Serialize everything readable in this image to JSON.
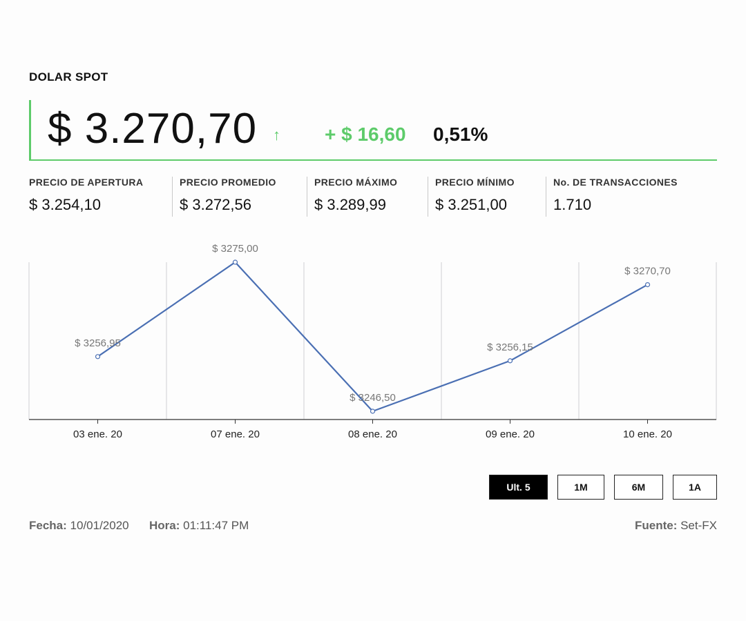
{
  "header": {
    "title": "DOLAR SPOT",
    "price": "$ 3.270,70",
    "arrow": "↑",
    "change_abs": "+ $ 16,60",
    "change_pct": "0,51%"
  },
  "stats": [
    {
      "label": "PRECIO DE APERTURA",
      "value": "$ 3.254,10"
    },
    {
      "label": "PRECIO PROMEDIO",
      "value": "$ 3.272,56"
    },
    {
      "label": "PRECIO MÁXIMO",
      "value": "$ 3.289,99"
    },
    {
      "label": "PRECIO MÍNIMO",
      "value": "$ 3.251,00"
    },
    {
      "label": "No. DE TRANSACCIONES",
      "value": "1.710"
    }
  ],
  "chart_data": {
    "type": "line",
    "categories": [
      "03 ene. 20",
      "07 ene. 20",
      "08 ene. 20",
      "09 ene. 20",
      "10 ene. 20"
    ],
    "values": [
      3256.95,
      3275.0,
      3246.5,
      3256.15,
      3270.7
    ],
    "data_labels": [
      "$ 3256,95",
      "$ 3275,00",
      "$ 3246,50",
      "$ 3256,15",
      "$ 3270,70"
    ],
    "title": "",
    "xlabel": "",
    "ylabel": "",
    "grid": "vertical",
    "line_color": "#4a6fb3"
  },
  "range_buttons": [
    {
      "label": "Ult. 5",
      "active": true
    },
    {
      "label": "1M",
      "active": false
    },
    {
      "label": "6M",
      "active": false
    },
    {
      "label": "1A",
      "active": false
    }
  ],
  "footer": {
    "fecha_label": "Fecha:",
    "fecha_value": "10/01/2020",
    "hora_label": "Hora:",
    "hora_value": "01:11:47 PM",
    "fuente_label": "Fuente:",
    "fuente_value": "Set-FX"
  },
  "colors": {
    "accent_green": "#5dcb6a",
    "line_blue": "#4a6fb3"
  }
}
